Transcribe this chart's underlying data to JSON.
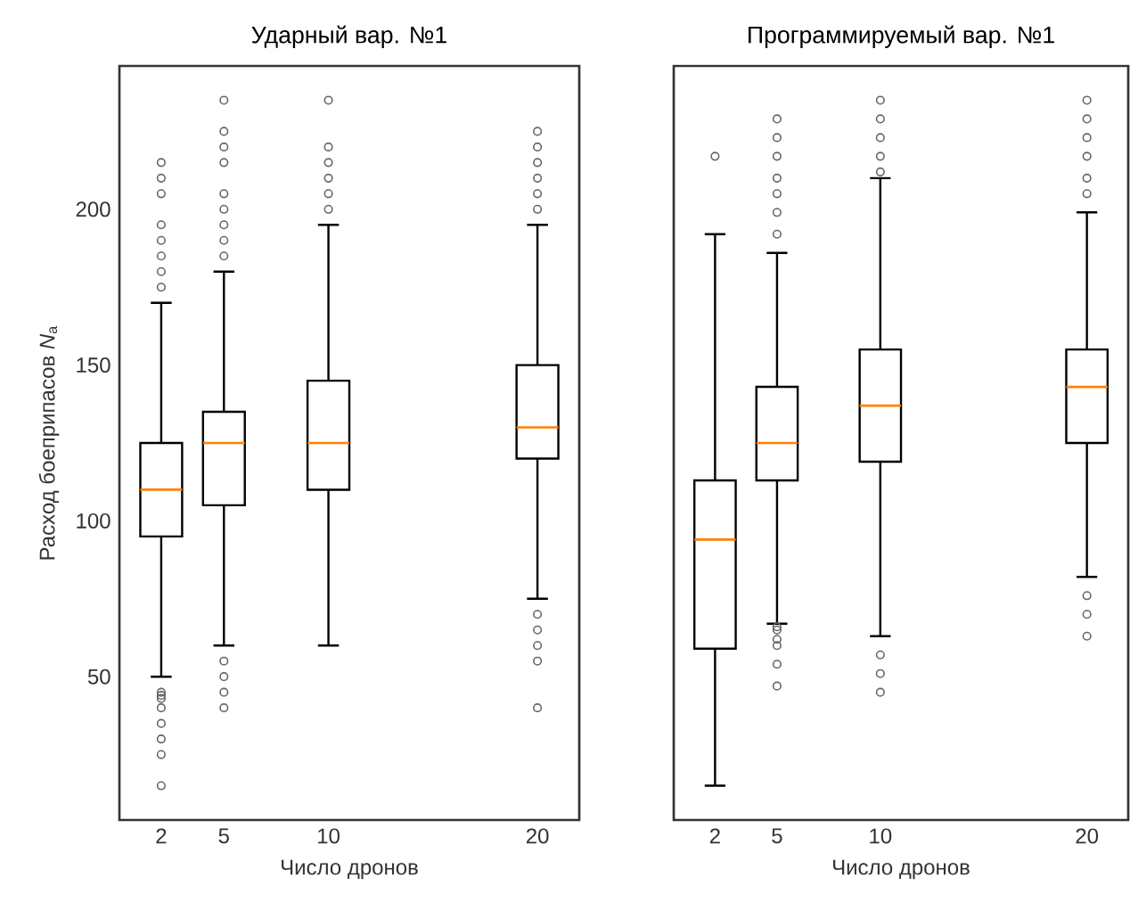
{
  "chart_data": [
    {
      "type": "box",
      "title": "Ударный вар. №1",
      "xlabel": "Число дронов",
      "ylabel": "Расход боеприпасов *N*$_{a}$",
      "x": [
        2,
        5,
        10,
        20
      ],
      "xlim": [
        0,
        22
      ],
      "xticks": [
        2,
        5,
        10,
        20
      ],
      "ylim": [
        4,
        246
      ],
      "yticks": [
        50,
        100,
        150,
        200
      ],
      "grid": false,
      "boxes": [
        {
          "low": 50,
          "q1": 95,
          "median": 110,
          "q3": 125,
          "high": 170,
          "outliers": [
            215,
            210,
            205,
            195,
            190,
            185,
            180,
            175,
            45,
            44,
            43,
            40,
            35,
            30,
            25,
            15
          ]
        },
        {
          "low": 60,
          "q1": 105,
          "median": 125,
          "q3": 135,
          "high": 180,
          "outliers": [
            235,
            225,
            220,
            215,
            205,
            200,
            195,
            190,
            185,
            55,
            50,
            45,
            40
          ]
        },
        {
          "low": 60,
          "q1": 110,
          "median": 125,
          "q3": 145,
          "high": 195,
          "outliers": [
            235,
            220,
            215,
            210,
            205,
            200
          ]
        },
        {
          "low": 75,
          "q1": 120,
          "median": 130,
          "q3": 150,
          "high": 195,
          "outliers": [
            225,
            220,
            215,
            210,
            205,
            200,
            70,
            65,
            60,
            55,
            40
          ]
        }
      ]
    },
    {
      "type": "box",
      "title": "Программируемый вар. №1",
      "xlabel": "Число дронов",
      "x": [
        2,
        5,
        10,
        20
      ],
      "xlim": [
        0,
        22
      ],
      "xticks": [
        2,
        5,
        10,
        20
      ],
      "ylim": [
        4,
        246
      ],
      "yticks": [
        50,
        100,
        150,
        200
      ],
      "tick_labels": "x",
      "grid": false,
      "boxes": [
        {
          "low": 15,
          "q1": 59,
          "median": 94,
          "q3": 113,
          "high": 192,
          "outliers": [
            217
          ]
        },
        {
          "low": 67,
          "q1": 113,
          "median": 125,
          "q3": 143,
          "high": 186,
          "outliers": [
            229,
            223,
            217,
            210,
            205,
            199,
            192,
            66,
            65,
            62,
            60,
            54,
            47
          ]
        },
        {
          "low": 63,
          "q1": 119,
          "median": 137,
          "q3": 155,
          "high": 210,
          "outliers": [
            235,
            229,
            223,
            217,
            212,
            57,
            51,
            45
          ]
        },
        {
          "low": 82,
          "q1": 125,
          "median": 143,
          "q3": 155,
          "high": 199,
          "outliers": [
            235,
            229,
            223,
            217,
            210,
            205,
            76,
            70,
            63
          ]
        }
      ]
    }
  ]
}
